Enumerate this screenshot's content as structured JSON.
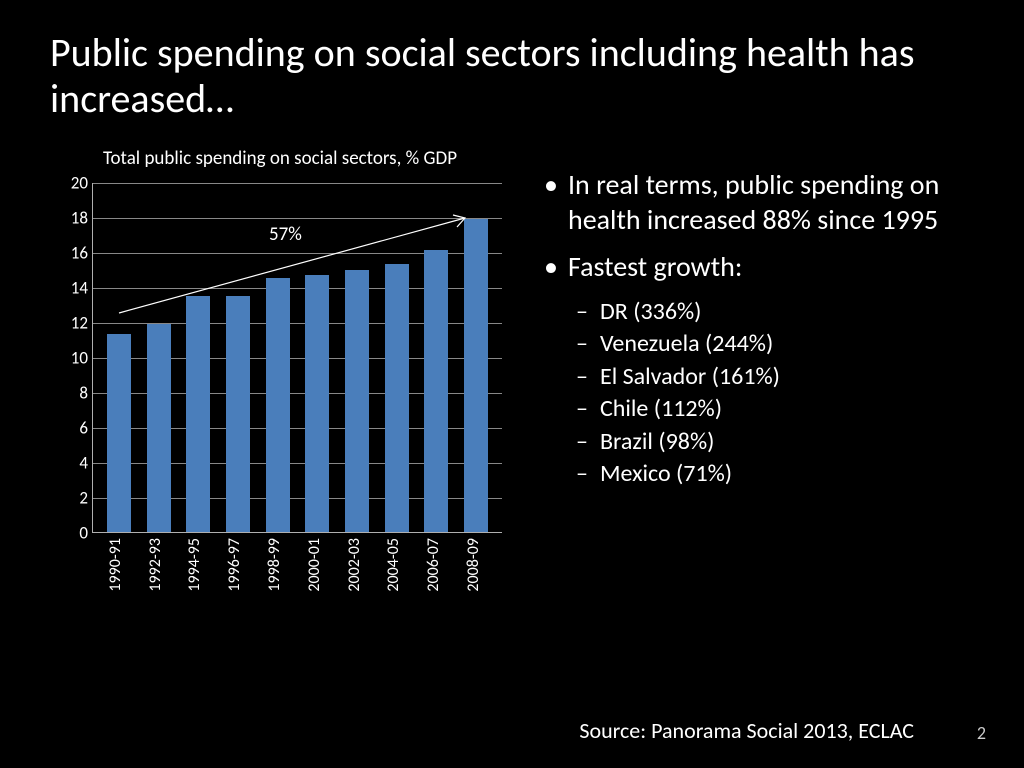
{
  "title": "Public spending on social sectors including health has increased…",
  "chart": {
    "type": "bar",
    "title": "Total public spending on social sectors, % GDP",
    "categories": [
      "1990-91",
      "1992-93",
      "1994-95",
      "1996-97",
      "1998-99",
      "2000-01",
      "2002-03",
      "2004-05",
      "2006-07",
      "2008-09"
    ],
    "values": [
      11.3,
      11.9,
      13.5,
      13.5,
      14.5,
      14.7,
      15.0,
      15.3,
      16.1,
      17.9
    ],
    "ylim": [
      0,
      20
    ],
    "ytick_step": 2,
    "bar_color": "#4a7ebb",
    "grid_color": "#888888",
    "axis_color": "#b0b0b0",
    "background_color": "#000000",
    "text_color": "#ffffff",
    "tick_fontsize": 17,
    "title_fontsize": 19,
    "annotation_label": "57%",
    "annotation_fontsize": 19
  },
  "bullets": {
    "main": [
      "In real terms, public spending on health increased 88% since 1995",
      "Fastest growth:"
    ],
    "sub": [
      "DR (336%)",
      "Venezuela (244%)",
      "El Salvador (161%)",
      "Chile (112%)",
      "Brazil (98%)",
      "Mexico (71%)"
    ]
  },
  "source": "Source: Panorama Social 2013, ECLAC",
  "page_number": "2",
  "colors": {
    "background": "#000000",
    "text": "#ffffff",
    "page_num": "#cccccc"
  },
  "typography": {
    "title_fontsize": 40,
    "bullet_l1_fontsize": 28,
    "bullet_l2_fontsize": 24,
    "source_fontsize": 22
  }
}
